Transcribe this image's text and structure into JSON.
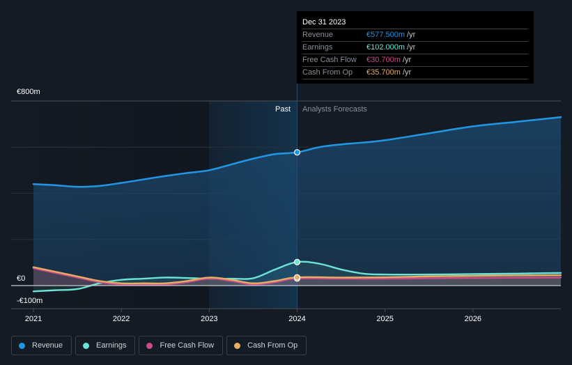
{
  "tooltip": {
    "date": "Dec 31 2023",
    "rows": [
      {
        "label": "Revenue",
        "value": "€577.500m",
        "unit": "/yr",
        "color": "#2394df"
      },
      {
        "label": "Earnings",
        "value": "€102.000m",
        "unit": "/yr",
        "color": "#6ce3d4"
      },
      {
        "label": "Free Cash Flow",
        "value": "€30.700m",
        "unit": "/yr",
        "color": "#c94c8c"
      },
      {
        "label": "Cash From Op",
        "value": "€35.700m",
        "unit": "/yr",
        "color": "#e8ad62"
      }
    ]
  },
  "labels": {
    "past": "Past",
    "forecast": "Analysts Forecasts"
  },
  "legend": [
    {
      "label": "Revenue",
      "color": "#2394df"
    },
    {
      "label": "Earnings",
      "color": "#6ce3d4"
    },
    {
      "label": "Free Cash Flow",
      "color": "#c94c8c"
    },
    {
      "label": "Cash From Op",
      "color": "#e8ad62"
    }
  ],
  "chart_data": {
    "type": "line",
    "title": "",
    "xlabel": "",
    "ylabel": "",
    "x_ticks": [
      "2021",
      "2022",
      "2023",
      "2024",
      "2025",
      "2026"
    ],
    "y_ticks": [
      {
        "value": 800,
        "label": "€800m"
      },
      {
        "value": 0,
        "label": "€0"
      },
      {
        "value": -100,
        "label": "-€100m"
      }
    ],
    "ylim": [
      -100,
      800
    ],
    "xlim": [
      2021.0,
      2027.0
    ],
    "grid": true,
    "past_end": 2024.0,
    "highlight_start": 2023.0,
    "series": [
      {
        "name": "Revenue",
        "color": "#2394df",
        "points": [
          [
            2021.0,
            440
          ],
          [
            2021.25,
            435
          ],
          [
            2021.5,
            428
          ],
          [
            2021.75,
            432
          ],
          [
            2022.0,
            445
          ],
          [
            2022.25,
            460
          ],
          [
            2022.5,
            475
          ],
          [
            2022.75,
            488
          ],
          [
            2023.0,
            500
          ],
          [
            2023.25,
            525
          ],
          [
            2023.5,
            550
          ],
          [
            2023.75,
            570
          ],
          [
            2024.0,
            577.5
          ],
          [
            2024.25,
            600
          ],
          [
            2024.5,
            612
          ],
          [
            2024.75,
            620
          ],
          [
            2025.0,
            630
          ],
          [
            2025.5,
            660
          ],
          [
            2026.0,
            690
          ],
          [
            2026.5,
            710
          ],
          [
            2027.0,
            730
          ]
        ]
      },
      {
        "name": "Earnings",
        "color": "#6ce3d4",
        "points": [
          [
            2021.0,
            -25
          ],
          [
            2021.25,
            -20
          ],
          [
            2021.5,
            -15
          ],
          [
            2021.75,
            10
          ],
          [
            2022.0,
            25
          ],
          [
            2022.25,
            30
          ],
          [
            2022.5,
            35
          ],
          [
            2022.75,
            33
          ],
          [
            2023.0,
            30
          ],
          [
            2023.25,
            30
          ],
          [
            2023.5,
            32
          ],
          [
            2023.75,
            70
          ],
          [
            2024.0,
            102
          ],
          [
            2024.25,
            95
          ],
          [
            2024.5,
            70
          ],
          [
            2024.75,
            52
          ],
          [
            2025.0,
            48
          ],
          [
            2025.5,
            48
          ],
          [
            2026.0,
            50
          ],
          [
            2026.5,
            52
          ],
          [
            2027.0,
            55
          ]
        ]
      },
      {
        "name": "Free Cash Flow",
        "color": "#c94c8c",
        "points": [
          [
            2021.0,
            75
          ],
          [
            2021.25,
            55
          ],
          [
            2021.5,
            35
          ],
          [
            2021.75,
            15
          ],
          [
            2022.0,
            5
          ],
          [
            2022.25,
            5
          ],
          [
            2022.5,
            5
          ],
          [
            2022.75,
            15
          ],
          [
            2023.0,
            30
          ],
          [
            2023.25,
            20
          ],
          [
            2023.5,
            5
          ],
          [
            2023.75,
            15
          ],
          [
            2024.0,
            30.7
          ],
          [
            2024.5,
            30
          ],
          [
            2025.0,
            30
          ],
          [
            2025.5,
            32
          ],
          [
            2026.0,
            33
          ],
          [
            2026.5,
            34
          ],
          [
            2027.0,
            35
          ]
        ]
      },
      {
        "name": "Cash From Op",
        "color": "#e8ad62",
        "points": [
          [
            2021.0,
            80
          ],
          [
            2021.25,
            60
          ],
          [
            2021.5,
            40
          ],
          [
            2021.75,
            20
          ],
          [
            2022.0,
            10
          ],
          [
            2022.25,
            10
          ],
          [
            2022.5,
            10
          ],
          [
            2022.75,
            20
          ],
          [
            2023.0,
            35
          ],
          [
            2023.25,
            25
          ],
          [
            2023.5,
            10
          ],
          [
            2023.75,
            20
          ],
          [
            2024.0,
            35.7
          ],
          [
            2024.5,
            35
          ],
          [
            2025.0,
            36
          ],
          [
            2025.5,
            40
          ],
          [
            2026.0,
            42
          ],
          [
            2026.5,
            44
          ],
          [
            2027.0,
            45
          ]
        ]
      }
    ]
  }
}
